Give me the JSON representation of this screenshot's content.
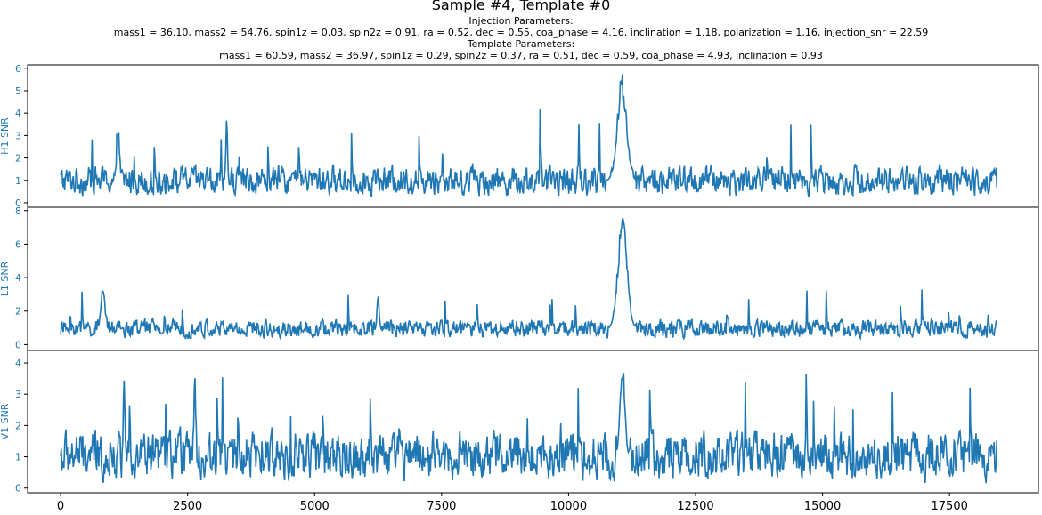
{
  "figure": {
    "title": "Sample #4, Template #0",
    "injection_header": "Injection Parameters:",
    "injection_params": "mass1 = 36.10, mass2 = 54.76, spin1z = 0.03, spin2z = 0.91, ra = 0.52, dec = 0.55, coa_phase = 4.16, inclination = 1.18, polarization = 1.16, injection_snr = 22.59",
    "template_header": "Template Parameters:",
    "template_params": "mass1 = 60.59, mass2 = 36.97, spin1z = 0.29, spin2z = 0.37, ra = 0.51, dec = 0.59, coa_phase = 4.93, inclination = 0.93"
  },
  "colors": {
    "series": "#1f77b4",
    "axis": "#000000"
  },
  "chart_data": [
    {
      "type": "line",
      "ylabel": "H1 SNR",
      "xlim": [
        -650,
        19250
      ],
      "ylim": [
        -0.2,
        6.15
      ],
      "yticks": [
        0,
        1,
        2,
        3,
        4,
        5,
        6
      ],
      "xticks": [],
      "noise": {
        "base": 1.0,
        "spread": 0.85,
        "spike_prob": 0.018,
        "spike_max": 3.9,
        "min": 0.0
      },
      "features": [
        {
          "x": 11050,
          "peak": 5.8,
          "width": 90
        },
        {
          "x": 3270,
          "peak": 4.0,
          "width": 15
        },
        {
          "x": 1140,
          "peak": 3.9,
          "width": 15
        }
      ],
      "x_end": 18430,
      "grid": false
    },
    {
      "type": "line",
      "ylabel": "L1 SNR",
      "xlim": [
        -650,
        19250
      ],
      "ylim": [
        -0.35,
        8.2
      ],
      "yticks": [
        0,
        2,
        4,
        6,
        8
      ],
      "xticks": [],
      "noise": {
        "base": 0.95,
        "spread": 0.7,
        "spike_prob": 0.016,
        "spike_max": 3.3,
        "min": 0.0
      },
      "features": [
        {
          "x": 11060,
          "peak": 7.8,
          "width": 90
        },
        {
          "x": 830,
          "peak": 3.9,
          "width": 35
        },
        {
          "x": 6250,
          "peak": 3.2,
          "width": 20
        }
      ],
      "x_end": 18430,
      "grid": false
    },
    {
      "type": "line",
      "ylabel": "V1 SNR",
      "xlim": [
        -650,
        19250
      ],
      "ylim": [
        -0.15,
        4.4
      ],
      "yticks": [
        0,
        1,
        2,
        3,
        4
      ],
      "xticks": [
        0,
        2500,
        5000,
        7500,
        10000,
        12500,
        15000,
        17500
      ],
      "noise": {
        "base": 1.05,
        "spread": 1.0,
        "spike_prob": 0.02,
        "spike_max": 3.7,
        "min": 0.0
      },
      "features": [
        {
          "x": 11060,
          "peak": 4.2,
          "width": 45
        },
        {
          "x": 2640,
          "peak": 3.75,
          "width": 15
        },
        {
          "x": 1250,
          "peak": 3.75,
          "width": 15
        }
      ],
      "x_end": 18430,
      "grid": false
    }
  ]
}
